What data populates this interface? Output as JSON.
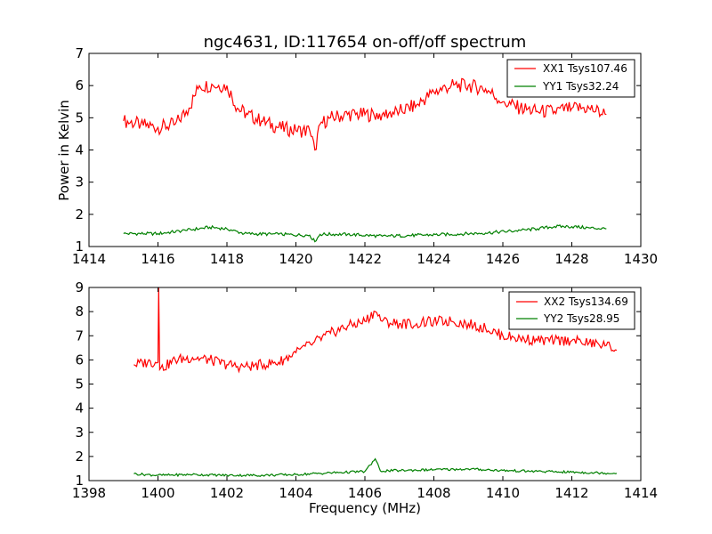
{
  "chart_data": [
    {
      "type": "line",
      "title": "ngc4631, ID:117654 on-off/off spectrum",
      "xlabel": "",
      "ylabel": "Power in Kelvin",
      "xlim": [
        1414,
        1430
      ],
      "ylim": [
        1,
        7
      ],
      "xticks": [
        "1414",
        "1416",
        "1418",
        "1420",
        "1422",
        "1424",
        "1426",
        "1428",
        "1430"
      ],
      "yticks": [
        "1",
        "2",
        "3",
        "4",
        "5",
        "6",
        "7"
      ],
      "legend_position": "top-right",
      "series": [
        {
          "name": "XX1 Tsys107.46",
          "color": "#ff0000",
          "x": [
            1415.0,
            1415.5,
            1416.0,
            1416.5,
            1416.9,
            1417.2,
            1417.6,
            1418.0,
            1418.3,
            1418.6,
            1419.0,
            1419.5,
            1420.0,
            1420.4,
            1420.55,
            1420.7,
            1421.0,
            1421.5,
            1422.0,
            1422.5,
            1423.0,
            1423.5,
            1424.0,
            1424.5,
            1425.0,
            1425.5,
            1426.0,
            1426.5,
            1427.0,
            1427.5,
            1428.0,
            1428.5,
            1429.0
          ],
          "y": [
            4.9,
            4.8,
            4.7,
            4.8,
            5.3,
            6.0,
            6.0,
            6.0,
            5.3,
            5.1,
            4.9,
            4.7,
            4.6,
            4.6,
            4.0,
            4.8,
            5.0,
            5.1,
            5.1,
            5.1,
            5.2,
            5.4,
            5.8,
            6.0,
            6.0,
            5.9,
            5.5,
            5.3,
            5.2,
            5.2,
            5.3,
            5.3,
            5.1
          ]
        },
        {
          "name": "YY1 Tsys32.24",
          "color": "#008000",
          "x": [
            1415.0,
            1416.0,
            1416.8,
            1417.5,
            1418.0,
            1418.5,
            1419.5,
            1420.4,
            1420.55,
            1420.7,
            1421.5,
            1422.5,
            1423.5,
            1424.5,
            1425.5,
            1426.5,
            1427.0,
            1427.5,
            1428.0,
            1428.5,
            1429.0
          ],
          "y": [
            1.4,
            1.4,
            1.5,
            1.6,
            1.55,
            1.4,
            1.38,
            1.35,
            1.15,
            1.38,
            1.38,
            1.32,
            1.35,
            1.38,
            1.42,
            1.5,
            1.55,
            1.62,
            1.62,
            1.58,
            1.55
          ]
        }
      ]
    },
    {
      "type": "line",
      "title": "",
      "xlabel": "Frequency (MHz)",
      "ylabel": "",
      "xlim": [
        1398,
        1414
      ],
      "ylim": [
        1,
        9
      ],
      "xticks": [
        "1398",
        "1400",
        "1402",
        "1404",
        "1406",
        "1408",
        "1410",
        "1412",
        "1414"
      ],
      "yticks": [
        "1",
        "2",
        "3",
        "4",
        "5",
        "6",
        "7",
        "8",
        "9"
      ],
      "legend_position": "top-right",
      "series": [
        {
          "name": "XX2 Tsys134.69",
          "color": "#ff0000",
          "x": [
            1399.3,
            1399.7,
            1400.0,
            1400.02,
            1400.05,
            1400.5,
            1401.0,
            1401.5,
            1402.0,
            1402.5,
            1403.0,
            1403.5,
            1404.0,
            1404.5,
            1405.0,
            1405.5,
            1406.0,
            1406.3,
            1406.5,
            1407.0,
            1407.5,
            1408.0,
            1408.5,
            1409.0,
            1409.5,
            1410.0,
            1410.5,
            1411.0,
            1411.5,
            1412.0,
            1412.5,
            1413.0,
            1413.3
          ],
          "y": [
            5.8,
            5.9,
            5.9,
            9.0,
            5.6,
            6.0,
            6.1,
            6.0,
            5.8,
            5.7,
            5.8,
            5.9,
            6.3,
            6.7,
            7.1,
            7.4,
            7.6,
            8.0,
            7.6,
            7.5,
            7.5,
            7.6,
            7.6,
            7.5,
            7.3,
            7.0,
            6.9,
            6.8,
            6.8,
            6.8,
            6.7,
            6.6,
            6.4
          ]
        },
        {
          "name": "YY2 Tsys28.95",
          "color": "#008000",
          "x": [
            1399.3,
            1400.0,
            1401.0,
            1402.0,
            1403.0,
            1404.0,
            1405.0,
            1406.0,
            1406.3,
            1406.45,
            1407.0,
            1408.0,
            1409.0,
            1410.0,
            1411.0,
            1412.0,
            1413.3
          ],
          "y": [
            1.28,
            1.22,
            1.25,
            1.22,
            1.22,
            1.25,
            1.32,
            1.38,
            1.9,
            1.4,
            1.42,
            1.45,
            1.48,
            1.42,
            1.38,
            1.35,
            1.3
          ]
        }
      ]
    }
  ]
}
